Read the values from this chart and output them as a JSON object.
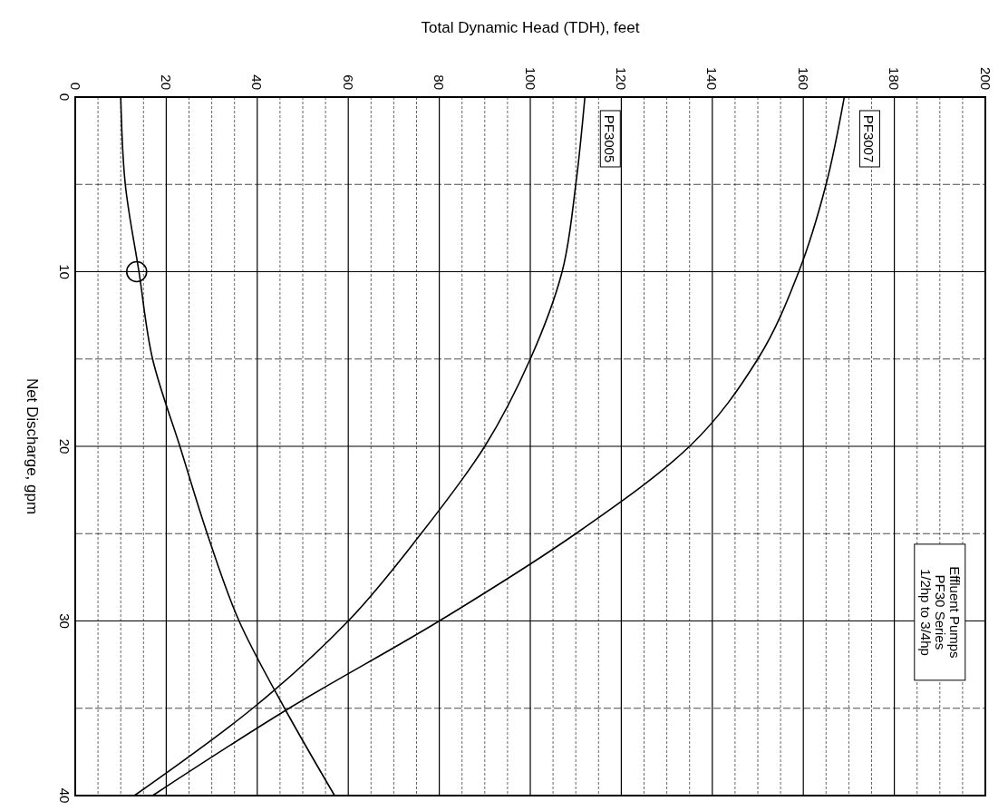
{
  "chart_data": {
    "type": "line",
    "xlabel": "Total Dynamic Head (TDH), feet",
    "ylabel": "Net Discharge, gpm",
    "xlim": [
      0,
      200
    ],
    "ylim": [
      40,
      0
    ],
    "xticks": [
      0,
      {
        "value": 5,
        "label": null
      },
      {
        "value": 10,
        "label": null
      },
      {
        "value": 15,
        "label": null
      },
      20,
      {
        "value": 25,
        "label": null
      },
      {
        "value": 30,
        "label": null
      },
      {
        "value": 35,
        "label": null
      },
      40,
      {
        "value": 45,
        "label": null
      },
      {
        "value": 50,
        "label": null
      },
      {
        "value": 55,
        "label": null
      },
      60,
      {
        "value": 65,
        "label": null
      },
      {
        "value": 70,
        "label": null
      },
      {
        "value": 75,
        "label": null
      },
      80,
      {
        "value": 85,
        "label": null
      },
      {
        "value": 90,
        "label": null
      },
      {
        "value": 95,
        "label": null
      },
      100,
      {
        "value": 105,
        "label": null
      },
      {
        "value": 110,
        "label": null
      },
      {
        "value": 115,
        "label": null
      },
      120,
      {
        "value": 125,
        "label": null
      },
      {
        "value": 130,
        "label": null
      },
      {
        "value": 135,
        "label": null
      },
      140,
      {
        "value": 145,
        "label": null
      },
      {
        "value": 150,
        "label": null
      },
      {
        "value": 155,
        "label": null
      },
      160,
      {
        "value": 165,
        "label": null
      },
      {
        "value": 170,
        "label": null
      },
      {
        "value": 175,
        "label": null
      },
      180,
      {
        "value": 185,
        "label": null
      },
      {
        "value": 190,
        "label": null
      },
      {
        "value": 195,
        "label": null
      },
      200
    ],
    "yticks": [
      0,
      {
        "value": 5,
        "label": null
      },
      10,
      {
        "value": 15,
        "label": null
      },
      20,
      {
        "value": 25,
        "label": null
      },
      30,
      {
        "value": 35,
        "label": null
      },
      40
    ],
    "grid": true,
    "line_style": "solid",
    "marker": "none",
    "annotations": [
      "Effluent Pumps\nPF30 Series\n1/2hp to 3/4hp"
    ],
    "series": [
      {
        "name": "PF3005",
        "color": "#000000",
        "x": [
          112,
          110,
          107,
          100,
          90,
          76,
          60,
          39,
          13
        ],
        "values": [
          0,
          5,
          10,
          15,
          20,
          25,
          30,
          35,
          40
        ]
      },
      {
        "name": "PF3007",
        "color": "#000000",
        "x": [
          169,
          165,
          159,
          150,
          135,
          110,
          80,
          47,
          17
        ],
        "values": [
          0,
          5,
          10,
          15,
          20,
          25,
          30,
          35,
          40
        ]
      },
      {
        "color": "#000000",
        "x": [
          10,
          11,
          14,
          17,
          23,
          29,
          36,
          46,
          57
        ],
        "values": [
          0,
          5,
          10,
          15,
          20,
          25,
          30,
          35,
          40
        ]
      },
      {
        "type": "scatter",
        "marker": "circle",
        "color": "#000000",
        "x": [
          13.5
        ],
        "values": [
          10
        ]
      }
    ]
  }
}
